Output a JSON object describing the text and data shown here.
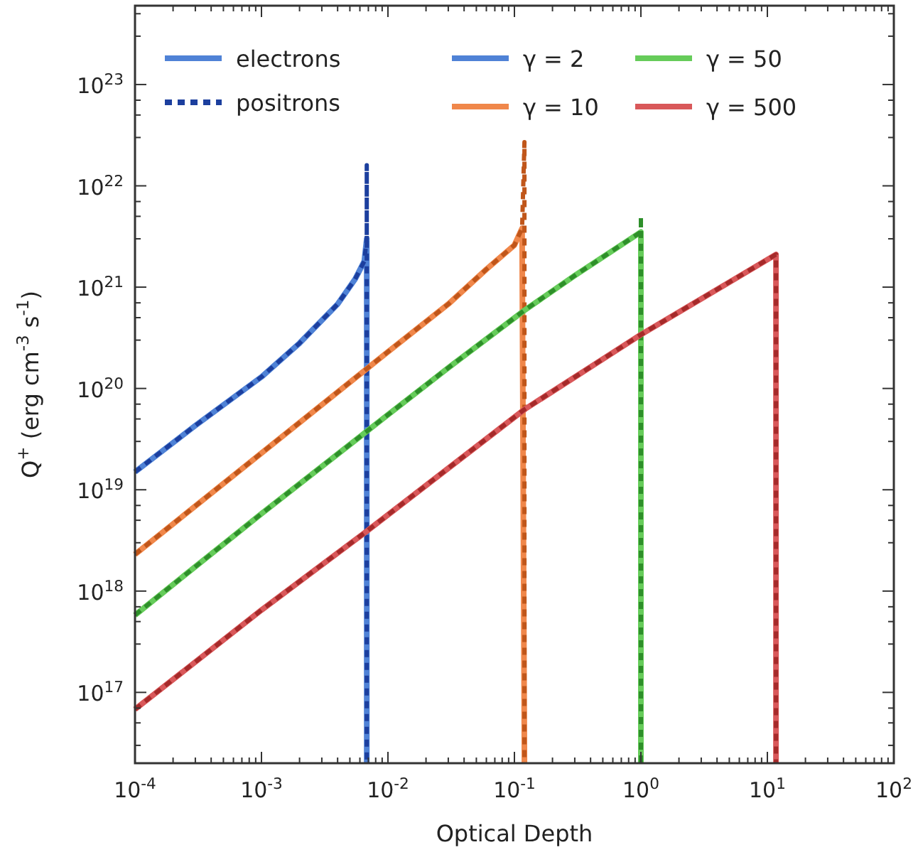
{
  "chart_data": {
    "type": "line",
    "xlabel": "Optical Depth",
    "ylabel": "Q$^{+}$ (erg cm$^{-3}$ s$^{-1}$)",
    "log": "xy",
    "grid": false,
    "marker": "none",
    "legend": "top",
    "xlim": [
      0.0001,
      100
    ],
    "ylim": [
      2e+16,
      6e+23
    ],
    "xticks": [
      {
        "value": 0.0001,
        "label": "10$^{-4}$"
      },
      {
        "value": 0.0002,
        "label": null
      },
      {
        "value": 0.0003,
        "label": null
      },
      {
        "value": 0.0004,
        "label": null
      },
      {
        "value": 0.0005,
        "label": null
      },
      {
        "value": 0.0006,
        "label": null
      },
      {
        "value": 0.0007,
        "label": null
      },
      {
        "value": 0.0008,
        "label": null
      },
      {
        "value": 0.0009,
        "label": null
      },
      {
        "value": 0.001,
        "label": "10$^{-3}$"
      },
      {
        "value": 0.002,
        "label": null
      },
      {
        "value": 0.003,
        "label": null
      },
      {
        "value": 0.004,
        "label": null
      },
      {
        "value": 0.005,
        "label": null
      },
      {
        "value": 0.006,
        "label": null
      },
      {
        "value": 0.007,
        "label": null
      },
      {
        "value": 0.008,
        "label": null
      },
      {
        "value": 0.009,
        "label": null
      },
      {
        "value": 0.01,
        "label": "10$^{-2}$"
      },
      {
        "value": 0.02,
        "label": null
      },
      {
        "value": 0.03,
        "label": null
      },
      {
        "value": 0.04,
        "label": null
      },
      {
        "value": 0.05,
        "label": null
      },
      {
        "value": 0.06,
        "label": null
      },
      {
        "value": 0.07,
        "label": null
      },
      {
        "value": 0.08,
        "label": null
      },
      {
        "value": 0.09,
        "label": null
      },
      {
        "value": 0.1,
        "label": "10$^{-1}$"
      },
      {
        "value": 0.2,
        "label": null
      },
      {
        "value": 0.3,
        "label": null
      },
      {
        "value": 0.4,
        "label": null
      },
      {
        "value": 0.5,
        "label": null
      },
      {
        "value": 0.6,
        "label": null
      },
      {
        "value": 0.7,
        "label": null
      },
      {
        "value": 0.8,
        "label": null
      },
      {
        "value": 0.9,
        "label": null
      },
      {
        "value": 1,
        "label": "10$^{0}$"
      },
      {
        "value": 2,
        "label": null
      },
      {
        "value": 3,
        "label": null
      },
      {
        "value": 4,
        "label": null
      },
      {
        "value": 5,
        "label": null
      },
      {
        "value": 6,
        "label": null
      },
      {
        "value": 7,
        "label": null
      },
      {
        "value": 8,
        "label": null
      },
      {
        "value": 9,
        "label": null
      },
      {
        "value": 10,
        "label": "10$^{1}$"
      },
      {
        "value": 20,
        "label": null
      },
      {
        "value": 30,
        "label": null
      },
      {
        "value": 40,
        "label": null
      },
      {
        "value": 50,
        "label": null
      },
      {
        "value": 60,
        "label": null
      },
      {
        "value": 70,
        "label": null
      },
      {
        "value": 80,
        "label": null
      },
      {
        "value": 90,
        "label": null
      },
      {
        "value": 100,
        "label": "10$^{2}$"
      }
    ],
    "yticks": [
      {
        "value": 3e+16,
        "label": null
      },
      {
        "value": 5e+16,
        "label": null
      },
      {
        "value": 7e+16,
        "label": null
      },
      {
        "value": 1e+17,
        "label": "10$^{17}$"
      },
      {
        "value": 3e+17,
        "label": null
      },
      {
        "value": 5e+17,
        "label": null
      },
      {
        "value": 7e+17,
        "label": null
      },
      {
        "value": 1e+18,
        "label": "10$^{18}$"
      },
      {
        "value": 3e+18,
        "label": null
      },
      {
        "value": 5e+18,
        "label": null
      },
      {
        "value": 7e+18,
        "label": null
      },
      {
        "value": 1e+19,
        "label": "10$^{19}$"
      },
      {
        "value": 3e+19,
        "label": null
      },
      {
        "value": 5e+19,
        "label": null
      },
      {
        "value": 7e+19,
        "label": null
      },
      {
        "value": 1e+20,
        "label": "10$^{20}$"
      },
      {
        "value": 3e+20,
        "label": null
      },
      {
        "value": 5e+20,
        "label": null
      },
      {
        "value": 7e+20,
        "label": null
      },
      {
        "value": 1e+21,
        "label": "10$^{21}$"
      },
      {
        "value": 3e+21,
        "label": null
      },
      {
        "value": 5e+21,
        "label": null
      },
      {
        "value": 7e+21,
        "label": null
      },
      {
        "value": 1e+22,
        "label": "10$^{22}$"
      },
      {
        "value": 3e+22,
        "label": null
      },
      {
        "value": 5e+22,
        "label": null
      },
      {
        "value": 7e+22,
        "label": null
      },
      {
        "value": 1e+23,
        "label": "10$^{23}$"
      },
      {
        "value": 3e+23,
        "label": null
      },
      {
        "value": 5e+23,
        "label": null
      }
    ],
    "annotations": [
      "electrons",
      "positrons"
    ],
    "series": [
      {
        "name": "γ = 2",
        "color": "#4f82d6",
        "line_style": "solid",
        "x": [
          0.0001,
          0.0003,
          0.001,
          0.002,
          0.004,
          0.0055,
          0.0065,
          0.0068,
          0.0068
        ],
        "values": [
          1.5e+19,
          4.3e+19,
          1.3e+20,
          2.8e+20,
          6.8e+20,
          1.2e+21,
          1.8e+21,
          3e+21,
          2e+16
        ]
      },
      {
        "color": "#1c3f9e",
        "line_style": "dashed",
        "x": [
          0.0001,
          0.0003,
          0.001,
          0.002,
          0.004,
          0.0055,
          0.0065,
          0.0068,
          0.0068,
          0.0068
        ],
        "values": [
          1.5e+19,
          4.3e+19,
          1.3e+20,
          2.8e+20,
          6.8e+20,
          1.2e+21,
          1.8e+21,
          3e+21,
          1.6e+22,
          2e+16
        ]
      },
      {
        "name": "γ = 10",
        "color": "#f0874a",
        "line_style": "solid",
        "x": [
          0.0001,
          0.001,
          0.01,
          0.03,
          0.06,
          0.1,
          0.115,
          0.12
        ],
        "values": [
          2.3e+18,
          2.3e+19,
          2.3e+20,
          6.8e+20,
          1.5e+21,
          2.6e+21,
          3.8e+21,
          2e+16
        ]
      },
      {
        "color": "#c0561a",
        "line_style": "dashed",
        "x": [
          0.0001,
          0.001,
          0.01,
          0.03,
          0.06,
          0.1,
          0.115,
          0.12,
          0.12
        ],
        "values": [
          2.3e+18,
          2.3e+19,
          2.3e+20,
          6.8e+20,
          1.5e+21,
          2.6e+21,
          3.8e+21,
          2.7e+22,
          2e+16
        ]
      },
      {
        "name": "γ = 50",
        "color": "#66cc5a",
        "line_style": "solid",
        "x": [
          0.0001,
          0.001,
          0.01,
          0.03,
          0.12,
          0.3,
          1,
          1
        ],
        "values": [
          5.8e+17,
          5.8e+18,
          5.5e+19,
          1.6e+20,
          5.9e+20,
          1.3e+21,
          3.5e+21,
          2e+16
        ]
      },
      {
        "color": "#2e8f2a",
        "line_style": "dashed",
        "x": [
          0.0001,
          0.001,
          0.01,
          0.03,
          0.12,
          0.3,
          1,
          1,
          1
        ],
        "values": [
          5.8e+17,
          5.8e+18,
          5.5e+19,
          1.6e+20,
          5.9e+20,
          1.3e+21,
          3.5e+21,
          5e+21,
          2e+16
        ]
      },
      {
        "name": "γ = 500",
        "color": "#d9585a",
        "line_style": "solid",
        "x": [
          0.0001,
          0.001,
          0.0068,
          0.12,
          1,
          11.7,
          11.7
        ],
        "values": [
          6.8e+16,
          6.5e+17,
          3.9e+18,
          6.2e+19,
          3.4e+20,
          2.1e+21,
          2e+16
        ]
      },
      {
        "color": "#a52a2a",
        "line_style": "dashed",
        "x": [
          0.0001,
          0.001,
          0.0068,
          0.12,
          1,
          11.7,
          11.7
        ],
        "values": [
          6.8e+16,
          6.5e+17,
          3.9e+18,
          6.2e+19,
          3.4e+20,
          2.1e+21,
          2e+16
        ]
      }
    ]
  }
}
